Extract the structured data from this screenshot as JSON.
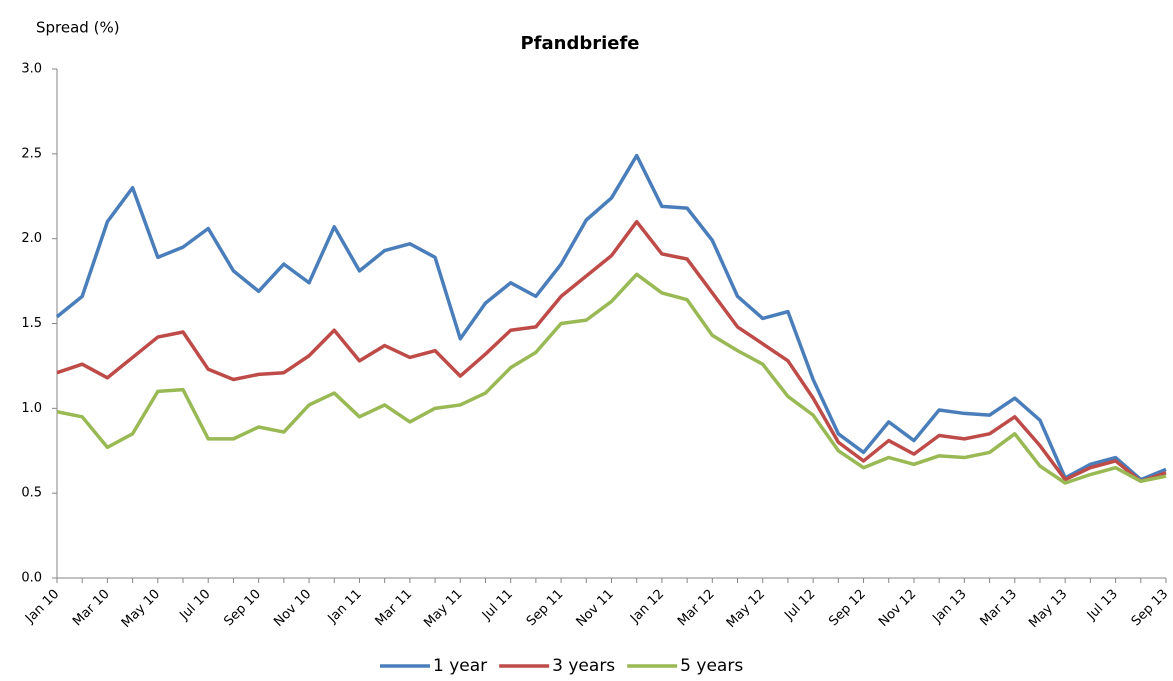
{
  "chart_data": {
    "type": "line",
    "title": "Pfandbriefe",
    "y_label": "Spread (%)",
    "categories": [
      "Jan 10",
      null,
      "Mar 10",
      null,
      "May 10",
      null,
      "Jul 10",
      null,
      "Sep 10",
      null,
      "Nov 10",
      null,
      "Jan 11",
      null,
      "Mar 11",
      null,
      "May 11",
      null,
      "Jul 11",
      null,
      "Sep 11",
      null,
      "Nov 11",
      null,
      "Jan 12",
      null,
      "Mar 12",
      null,
      "May 12",
      null,
      "Jul 12",
      null,
      "Sep 12",
      null,
      "Nov 12",
      null,
      "Jan 13",
      null,
      "Mar 13",
      null,
      "May 13",
      null,
      "Jul 13",
      null,
      "Sep 13"
    ],
    "series": [
      {
        "name": "1 year",
        "color": "#4a7ebb",
        "values": [
          1.54,
          1.66,
          2.1,
          2.3,
          1.89,
          1.95,
          2.06,
          1.81,
          1.69,
          1.85,
          1.74,
          2.07,
          1.81,
          1.93,
          1.97,
          1.89,
          1.41,
          1.62,
          1.74,
          1.66,
          1.85,
          2.11,
          2.24,
          2.49,
          2.19,
          2.18,
          1.99,
          1.66,
          1.53,
          1.57,
          1.17,
          0.85,
          0.74,
          0.92,
          0.81,
          0.99,
          0.97,
          0.96,
          1.06,
          0.93,
          0.59,
          0.67,
          0.71,
          0.58,
          0.64
        ]
      },
      {
        "name": "3 years",
        "color": "#be4b48",
        "values": [
          1.21,
          1.26,
          1.18,
          1.3,
          1.42,
          1.45,
          1.23,
          1.17,
          1.2,
          1.21,
          1.31,
          1.46,
          1.28,
          1.37,
          1.3,
          1.34,
          1.19,
          1.32,
          1.46,
          1.48,
          1.66,
          1.78,
          1.9,
          2.1,
          1.91,
          1.88,
          1.68,
          1.48,
          1.38,
          1.28,
          1.06,
          0.8,
          0.69,
          0.81,
          0.73,
          0.84,
          0.82,
          0.85,
          0.95,
          0.78,
          0.58,
          0.65,
          0.69,
          0.57,
          0.62
        ]
      },
      {
        "name": "5 years",
        "color": "#98b954",
        "values": [
          0.98,
          0.95,
          0.77,
          0.85,
          1.1,
          1.11,
          0.82,
          0.82,
          0.89,
          0.86,
          1.02,
          1.09,
          0.95,
          1.02,
          0.92,
          1.0,
          1.02,
          1.09,
          1.24,
          1.33,
          1.5,
          1.52,
          1.63,
          1.79,
          1.68,
          1.64,
          1.43,
          1.34,
          1.26,
          1.07,
          0.96,
          0.75,
          0.65,
          0.71,
          0.67,
          0.72,
          0.71,
          0.74,
          0.85,
          0.66,
          0.56,
          0.61,
          0.65,
          0.57,
          0.6
        ]
      }
    ],
    "ylim": [
      0,
      3
    ],
    "yticks": [
      {
        "value": 0,
        "label": "0.0"
      },
      {
        "value": 0.5,
        "label": "0.5"
      },
      {
        "value": 1,
        "label": "1.0"
      },
      {
        "value": 1.5,
        "label": "1.5"
      },
      {
        "value": 2,
        "label": "2.0"
      },
      {
        "value": 2.5,
        "label": "2.5"
      },
      {
        "value": 3,
        "label": "3.0"
      }
    ],
    "grid": false,
    "legend": "bottom"
  }
}
